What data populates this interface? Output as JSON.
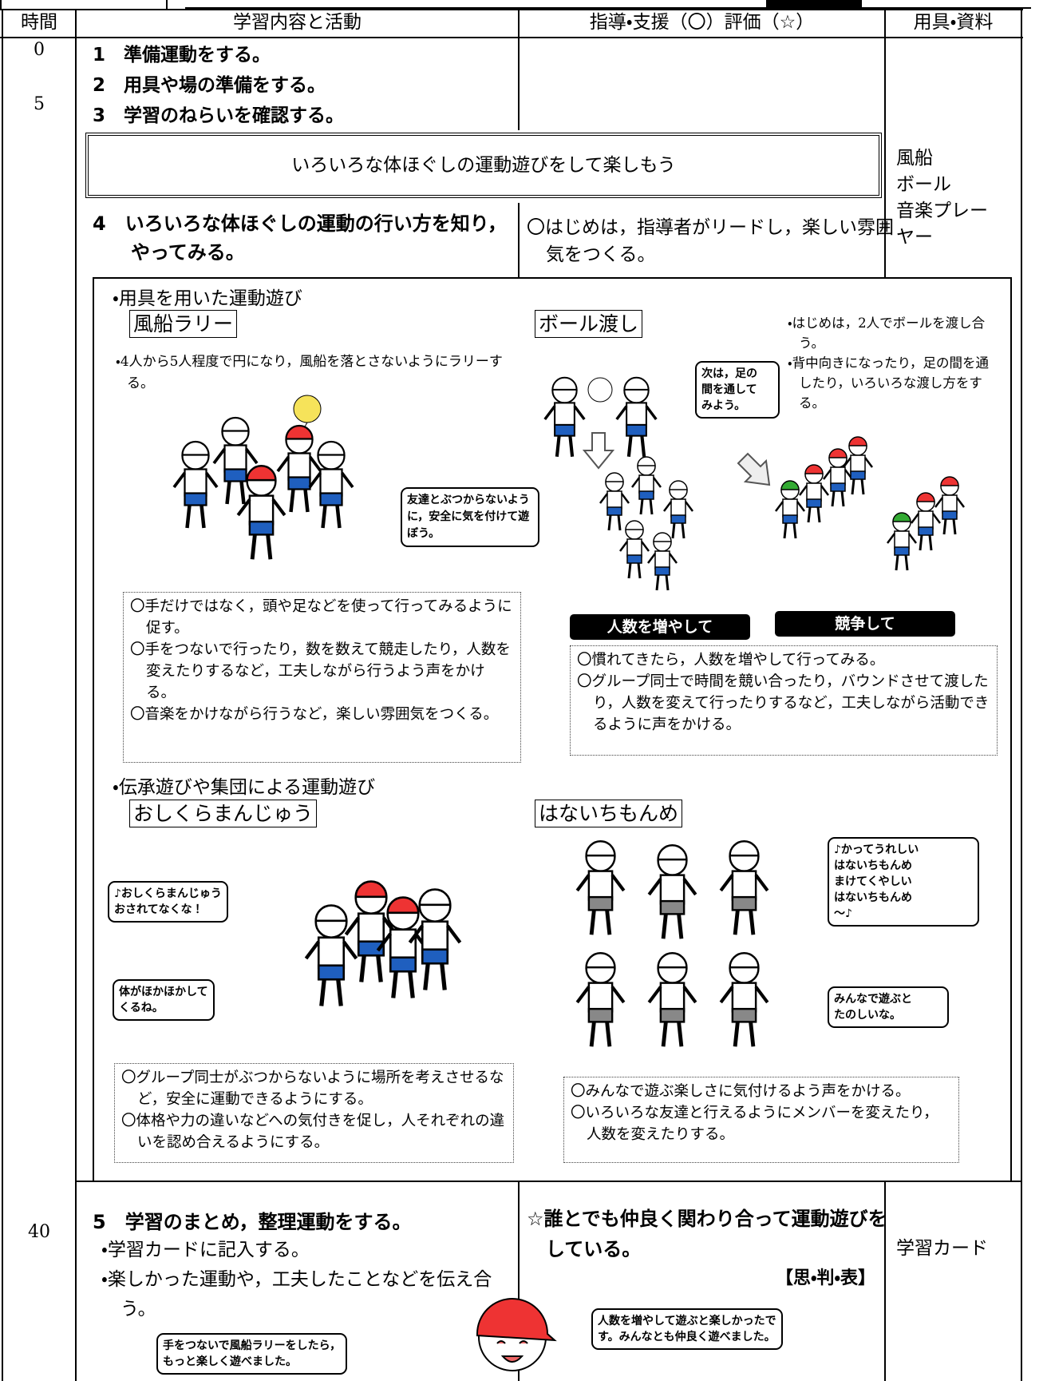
{
  "header": {
    "time": "時間",
    "content": "学習内容と活動",
    "guidance": "指導・支援（〇）評価（☆）",
    "tools": "用具・資料"
  },
  "times": [
    0,
    5,
    40
  ],
  "intro_steps": [
    "1　準備運動をする。",
    "2　用具や場の準備をする。",
    "3　学習のねらいを確認する。"
  ],
  "goal": "いろいろな体ほぐしの運動遊びをして楽しもう",
  "tools": [
    "風船",
    "ボール",
    "音楽プレーヤー"
  ],
  "step4": {
    "text": "4　いろいろな体ほぐしの運動の行い方を知り，やってみる。",
    "guidance": "〇はじめは，指導者がリードし，楽しい雰囲気をつくる。"
  },
  "activities": {
    "equipment_heading": "・用具を用いた運動遊び",
    "balloon": {
      "title": "風船ラリー",
      "description": "・4人から5人程度で円になり，風船を落とさないようにラリーする。",
      "bubble": "友達とぶつからないように，安全に気を付けて遊ぼう。",
      "notes": [
        "〇手だけではなく，頭や足などを使って行ってみるように促す。",
        "〇手をつないで行ったり，数を数えて競走したり，人数を変えたりするなど，工夫しながら行うよう声をかける。",
        "〇音楽をかけながら行うなど，楽しい雰囲気をつくる。"
      ]
    },
    "ball": {
      "title": "ボール渡し",
      "description": [
        "・はじめは，2人でボールを渡し合う。",
        "・背中向きになったり，足の間を通したり，いろいろな渡し方をする。"
      ],
      "bubble": "次は，足の\n間を通して\nみよう。",
      "labels": [
        "人数を増やして",
        "競争して"
      ],
      "notes": [
        "〇慣れてきたら，人数を増やして行ってみる。",
        "〇グループ同士で時間を競い合ったり，バウンドさせて渡したり，人数を変えて行ったりするなど，工夫しながら活動できるように声をかける。"
      ]
    },
    "traditional_heading": "・伝承遊びや集団による運動遊び",
    "oshikura": {
      "title": "おしくらまんじゅう",
      "bubbles": [
        "♪おしくらまんじゅう\nおされてなくな！",
        "体がほかほかして\nくるね。"
      ],
      "notes": [
        "〇グループ同士がぶつからないように場所を考えさせるなど，安全に運動できるようにする。",
        "〇体格や力の違いなどへの気付きを促し，人それぞれの違いを認め合えるようにする。"
      ]
    },
    "hanaichi": {
      "title": "はないちもんめ",
      "bubbles": [
        "♪かってうれしい\nはないちもんめ\nまけてくやしい\nはないちもんめ\n～♪",
        "みんなで遊ぶと\nたのしいな。"
      ],
      "notes": [
        "〇みんなで遊ぶ楽しさに気付けるよう声をかける。",
        "〇いろいろな友達と行えるようにメンバーを変えたり，人数を変えたりする。"
      ]
    }
  },
  "closing": {
    "step": "5　学習のまとめ，整理運動をする。",
    "items": [
      "・学習カードに記入する。",
      "・楽しかった運動や，工夫したことなどを伝え合う。"
    ],
    "evaluation": "☆誰とでも仲良く関わり合って運動遊びをしている。",
    "evaluation_tag": "【思・判・表】",
    "tools": "学習カード",
    "bubbles": [
      "手をつないで風船ラリーをしたら，\nもっと楽しく遊べました。",
      "人数を増やして遊ぶと楽しかったで\nす。みんなとも仲良く遊べました。"
    ]
  }
}
